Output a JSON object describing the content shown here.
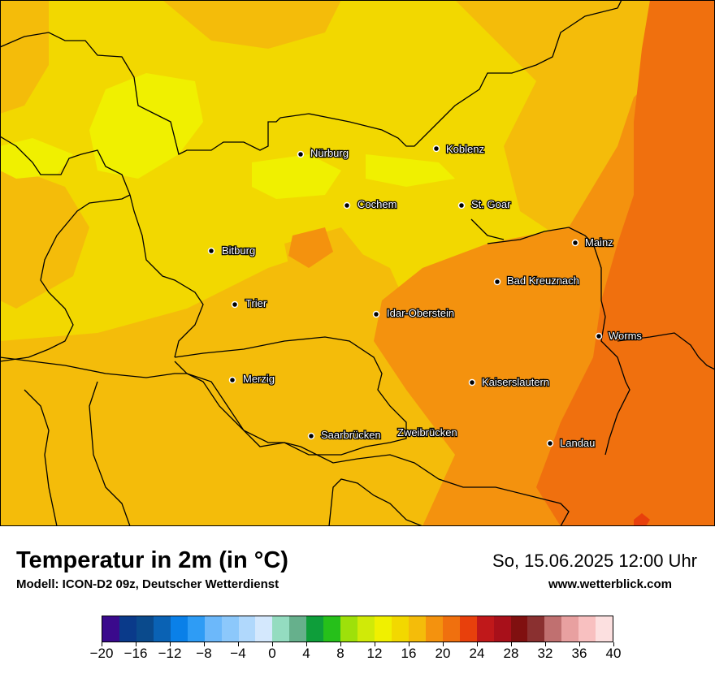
{
  "title": "Temperatur in 2m (in °C)",
  "subtitle": "Modell: ICON-D2 09z, Deutscher Wetterdienst",
  "datetime": "So, 15.06.2025 12:00 Uhr",
  "website": "www.wetterblick.com",
  "cities": [
    {
      "name": "Nürburg",
      "temp_class": "cool"
    },
    {
      "name": "Koblenz",
      "temp_class": "mid"
    },
    {
      "name": "Cochem",
      "temp_class": "mid"
    },
    {
      "name": "St. Goar",
      "temp_class": "mid"
    },
    {
      "name": "Mainz",
      "temp_class": "warm"
    },
    {
      "name": "Bitburg",
      "temp_class": "mid"
    },
    {
      "name": "Bad Kreuznach",
      "temp_class": "warm"
    },
    {
      "name": "Trier",
      "temp_class": "mid"
    },
    {
      "name": "Idar-Oberstein",
      "temp_class": "warm"
    },
    {
      "name": "Worms",
      "temp_class": "warm"
    },
    {
      "name": "Merzig",
      "temp_class": "mid"
    },
    {
      "name": "Kaiserslautern",
      "temp_class": "warm"
    },
    {
      "name": "Saarbrücken",
      "temp_class": "mid"
    },
    {
      "name": "Zweibrücken",
      "temp_class": "mid"
    },
    {
      "name": "Landau",
      "temp_class": "warm"
    }
  ],
  "colorbar": {
    "min": -20,
    "max": 40,
    "step": 2,
    "tick_labels": [
      "−20",
      "−16",
      "−12",
      "−8",
      "−4",
      "0",
      "4",
      "8",
      "12",
      "16",
      "20",
      "24",
      "28",
      "32",
      "36",
      "40"
    ],
    "colors": [
      "#3a0a8c",
      "#0a3a8a",
      "#0a4a8c",
      "#0a62b4",
      "#0a80e8",
      "#2e9cf5",
      "#6cb8fa",
      "#8cc8fb",
      "#b0d8fc",
      "#d4e8fd",
      "#94dcc0",
      "#66b08c",
      "#0e9e3a",
      "#26c01a",
      "#9ee00a",
      "#d0ea08",
      "#f0f000",
      "#f2d800",
      "#f4bc0a",
      "#f4920e",
      "#f0700e",
      "#e8400c",
      "#c0181a",
      "#a8101a",
      "#801010",
      "#8a3030",
      "#c07070",
      "#e8a0a0",
      "#f8c0c0",
      "#fce0e0"
    ]
  },
  "map_colors": {
    "t16": "#f0f000",
    "t18": "#f2d800",
    "t20": "#f4bc0a",
    "t22": "#f4920e",
    "t24": "#f0700e",
    "t26": "#e8400c",
    "border": "#000000"
  }
}
